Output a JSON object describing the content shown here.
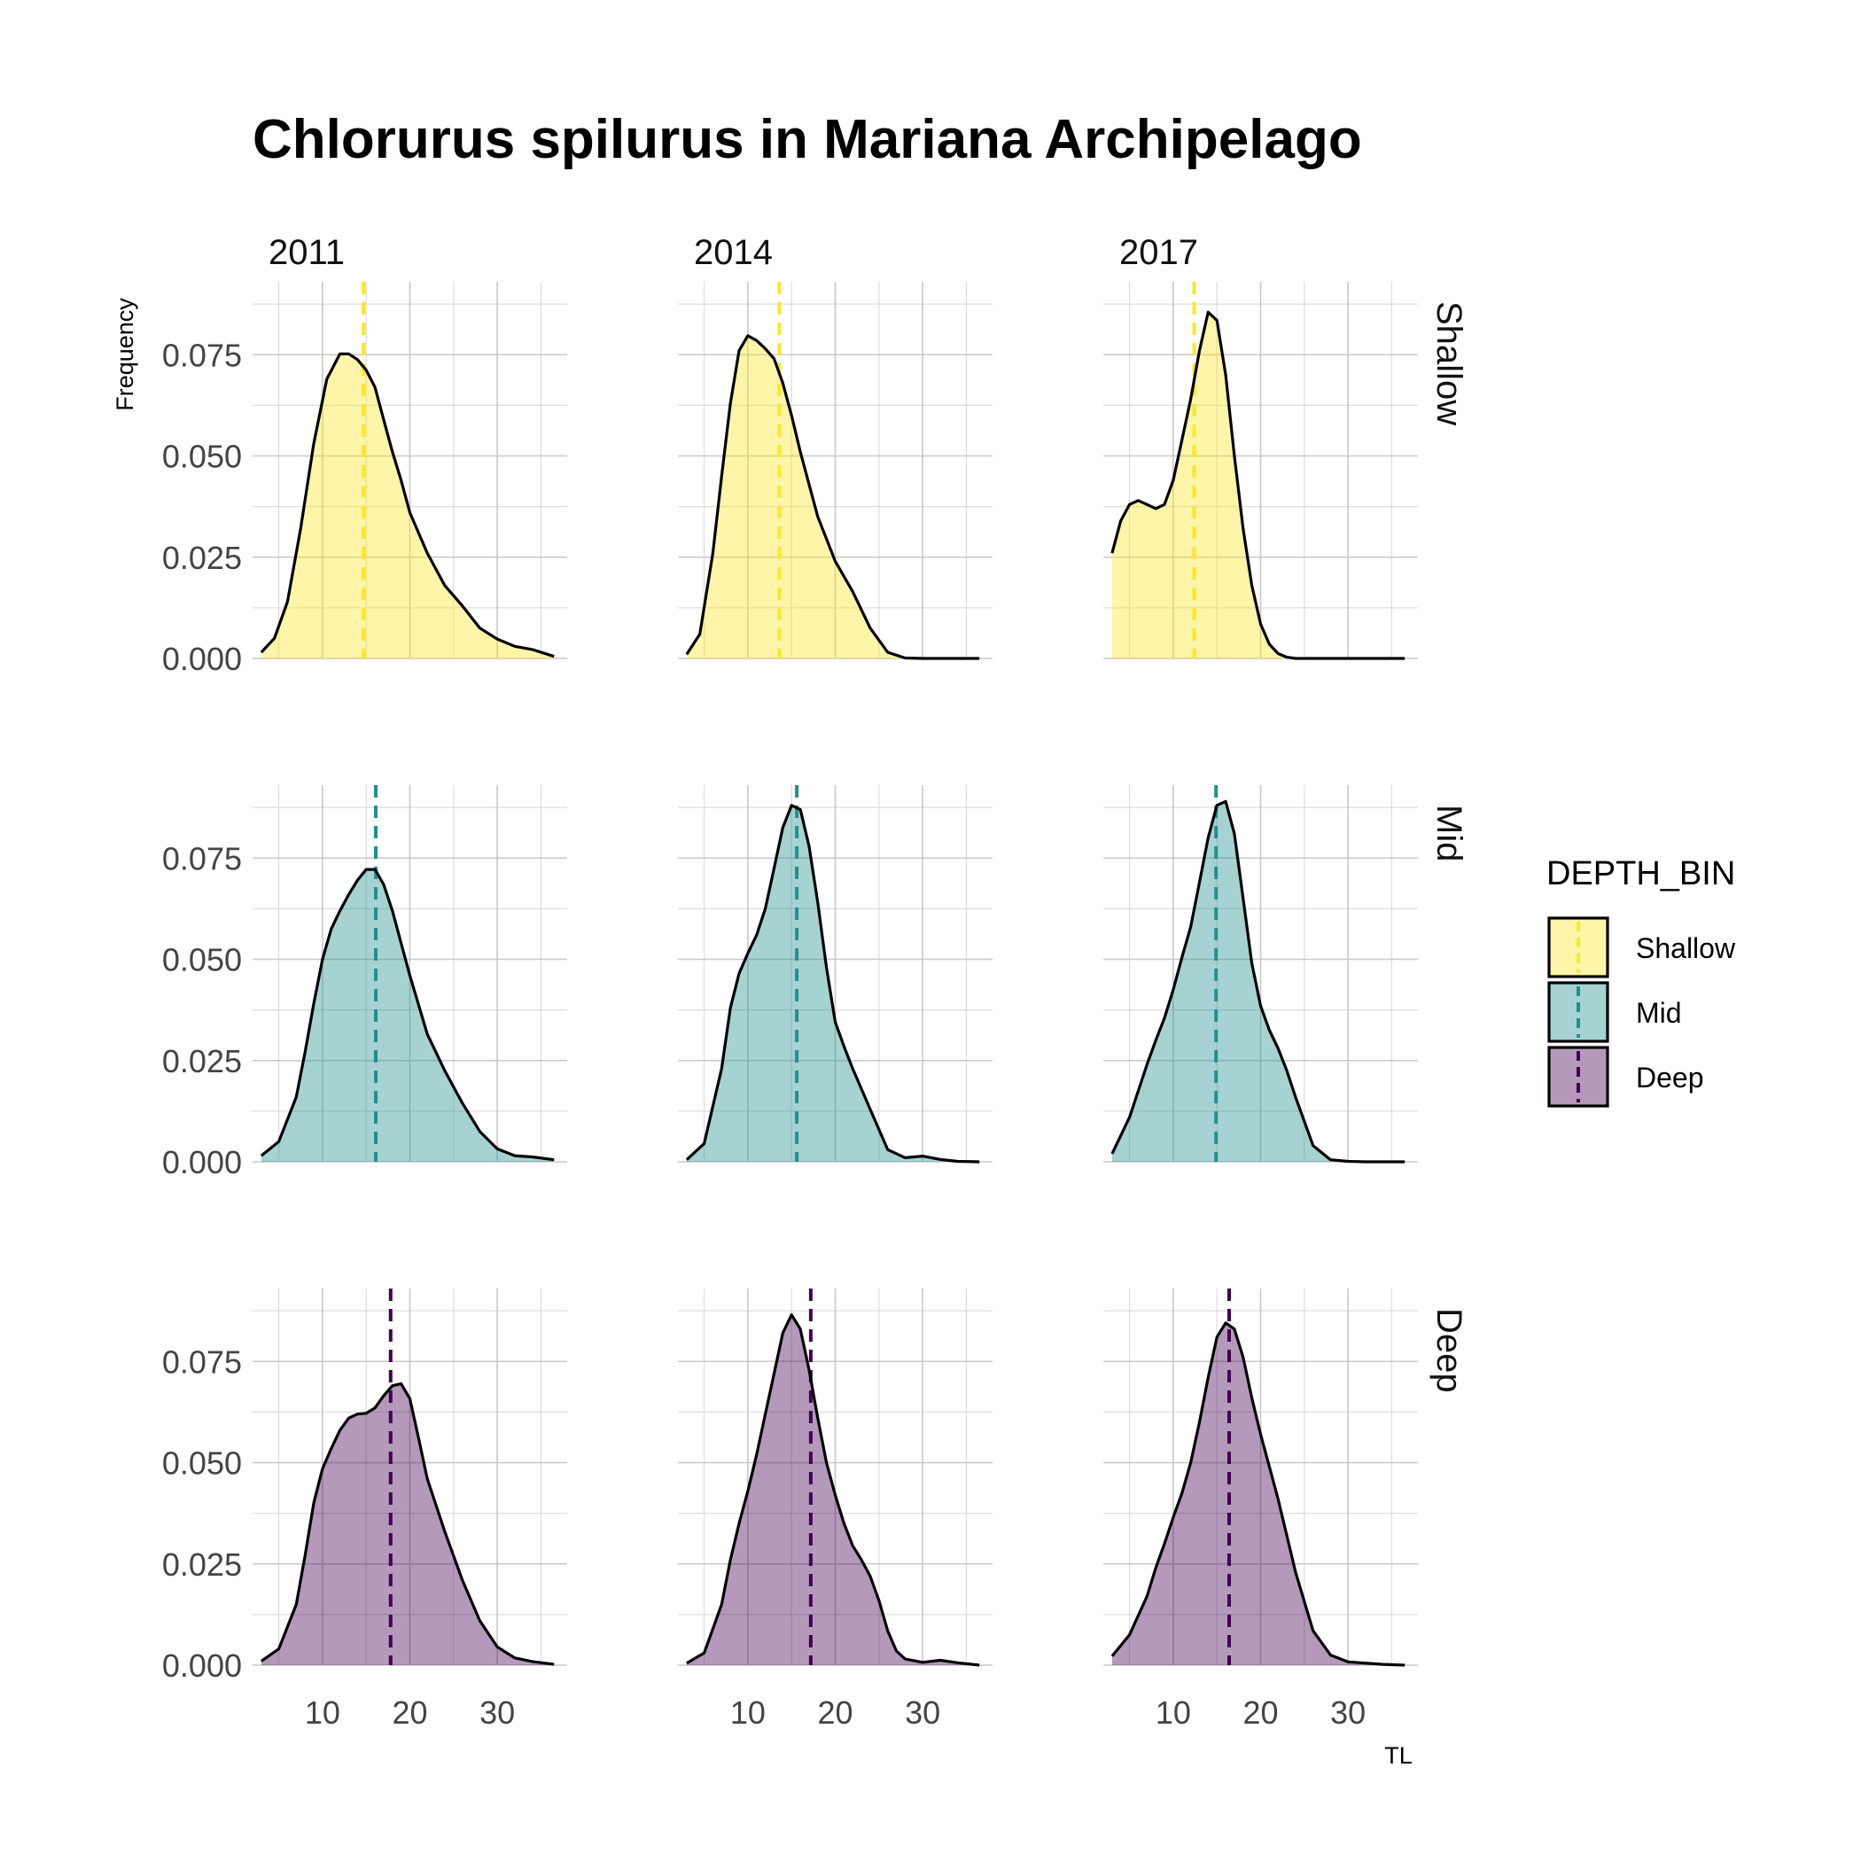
{
  "chart_data": {
    "type": "area",
    "title": "Chlorurus spilurus in Mariana Archipelago",
    "xlabel": "TL",
    "ylabel": "Frequency",
    "years": [
      "2011",
      "2014",
      "2017"
    ],
    "depth_bins": [
      "Shallow",
      "Mid",
      "Deep"
    ],
    "xlim": [
      2,
      38
    ],
    "ylim": [
      0,
      0.093
    ],
    "x_ticks": [
      10,
      20,
      30
    ],
    "y_ticks": [
      "0.000",
      "0.025",
      "0.050",
      "0.075"
    ],
    "grid": true,
    "legend": {
      "title": "DEPTH_BIN",
      "position": "right",
      "items": [
        {
          "label": "Shallow",
          "color": "#FDE725"
        },
        {
          "label": "Mid",
          "color": "#21908C"
        },
        {
          "label": "Deep",
          "color": "#440154"
        }
      ]
    },
    "panels": [
      {
        "depth": "Shallow",
        "year": "2011",
        "mean": 14.7,
        "x": [
          3,
          4.5,
          6,
          7.5,
          9,
          10.5,
          12,
          13,
          14,
          15,
          16,
          17,
          18,
          19,
          20,
          22,
          24,
          26,
          28,
          30,
          32,
          34,
          36.5
        ],
        "y": [
          0.0015,
          0.005,
          0.014,
          0.032,
          0.053,
          0.069,
          0.0752,
          0.0752,
          0.0738,
          0.0712,
          0.067,
          0.059,
          0.051,
          0.044,
          0.036,
          0.026,
          0.018,
          0.013,
          0.0075,
          0.0048,
          0.003,
          0.0022,
          0.0005
        ]
      },
      {
        "depth": "Shallow",
        "year": "2014",
        "mean": 13.6,
        "x": [
          3,
          4.5,
          6,
          7,
          8,
          9,
          10,
          11,
          12,
          13,
          14,
          15,
          16,
          18,
          20,
          22,
          24,
          26,
          28,
          30,
          32,
          34,
          36.5
        ],
        "y": [
          0.001,
          0.006,
          0.026,
          0.045,
          0.063,
          0.076,
          0.0797,
          0.0785,
          0.0765,
          0.074,
          0.068,
          0.06,
          0.051,
          0.035,
          0.024,
          0.0165,
          0.0075,
          0.0015,
          0.0001,
          0,
          0,
          0,
          0
        ]
      },
      {
        "depth": "Shallow",
        "year": "2017",
        "mean": 12.4,
        "x": [
          3,
          4,
          5,
          6,
          7,
          8,
          9,
          10,
          11,
          12,
          13,
          14,
          15,
          16,
          17,
          18,
          19,
          20,
          21,
          22,
          23,
          24,
          26,
          28,
          32,
          36.5
        ],
        "y": [
          0.026,
          0.034,
          0.038,
          0.039,
          0.038,
          0.037,
          0.038,
          0.044,
          0.054,
          0.064,
          0.076,
          0.0855,
          0.0835,
          0.07,
          0.05,
          0.032,
          0.018,
          0.0085,
          0.0035,
          0.0012,
          0.0003,
          0,
          0,
          0,
          0,
          0
        ]
      },
      {
        "depth": "Mid",
        "year": "2011",
        "mean": 16.1,
        "x": [
          3,
          5,
          7,
          8,
          9,
          10,
          11,
          12,
          13,
          14,
          15,
          16,
          17,
          18,
          19,
          20,
          22,
          24,
          26,
          28,
          30,
          32,
          34,
          36.5
        ],
        "y": [
          0.0015,
          0.005,
          0.016,
          0.027,
          0.039,
          0.05,
          0.0575,
          0.062,
          0.066,
          0.0695,
          0.0722,
          0.0722,
          0.0685,
          0.062,
          0.054,
          0.046,
          0.0315,
          0.0225,
          0.0145,
          0.0075,
          0.0032,
          0.0015,
          0.0012,
          0.0005
        ]
      },
      {
        "depth": "Mid",
        "year": "2014",
        "mean": 15.6,
        "x": [
          3,
          5,
          7,
          8,
          9,
          10,
          11,
          12,
          13,
          14,
          15,
          16,
          17,
          18,
          19,
          20,
          21,
          22,
          24,
          26,
          28,
          30,
          32,
          34,
          36.5
        ],
        "y": [
          0.0005,
          0.0045,
          0.023,
          0.038,
          0.0465,
          0.0515,
          0.056,
          0.0625,
          0.0725,
          0.0825,
          0.088,
          0.087,
          0.078,
          0.064,
          0.048,
          0.0345,
          0.0285,
          0.023,
          0.013,
          0.003,
          0.001,
          0.0014,
          0.0006,
          0.0001,
          0
        ]
      },
      {
        "depth": "Mid",
        "year": "2017",
        "mean": 14.9,
        "x": [
          3,
          5,
          7,
          8,
          9,
          10,
          11,
          12,
          13,
          14,
          15,
          16,
          17,
          18,
          19,
          20,
          21,
          22,
          23,
          24,
          26,
          28,
          30,
          32,
          34,
          36.5
        ],
        "y": [
          0.002,
          0.011,
          0.024,
          0.03,
          0.0355,
          0.0425,
          0.0505,
          0.058,
          0.069,
          0.08,
          0.088,
          0.089,
          0.081,
          0.065,
          0.049,
          0.0385,
          0.0325,
          0.028,
          0.0225,
          0.016,
          0.004,
          0.0005,
          0.0001,
          0,
          0,
          0
        ]
      },
      {
        "depth": "Deep",
        "year": "2011",
        "mean": 17.8,
        "x": [
          3,
          5,
          7,
          8,
          9,
          10,
          11,
          12,
          13,
          14,
          15,
          16,
          17,
          18,
          19,
          20,
          21,
          22,
          24,
          26,
          28,
          30,
          32,
          34,
          36.5
        ],
        "y": [
          0.001,
          0.004,
          0.015,
          0.027,
          0.04,
          0.0485,
          0.0535,
          0.058,
          0.061,
          0.062,
          0.0622,
          0.0635,
          0.0665,
          0.069,
          0.0695,
          0.0658,
          0.056,
          0.046,
          0.033,
          0.021,
          0.011,
          0.0045,
          0.0018,
          0.0009,
          0.0002
        ]
      },
      {
        "depth": "Deep",
        "year": "2014",
        "mean": 17.2,
        "x": [
          3,
          5,
          7,
          8,
          9,
          10,
          11,
          12,
          13,
          14,
          15,
          16,
          17,
          18,
          19,
          20,
          21,
          22,
          23,
          24,
          25,
          26,
          27,
          28,
          30,
          32,
          34,
          36.5
        ],
        "y": [
          0.0005,
          0.003,
          0.015,
          0.026,
          0.035,
          0.043,
          0.052,
          0.062,
          0.072,
          0.082,
          0.0865,
          0.083,
          0.073,
          0.061,
          0.05,
          0.042,
          0.035,
          0.0295,
          0.026,
          0.022,
          0.016,
          0.0085,
          0.0035,
          0.0015,
          0.0007,
          0.0012,
          0.0006,
          0
        ]
      },
      {
        "depth": "Deep",
        "year": "2017",
        "mean": 16.4,
        "x": [
          3,
          5,
          7,
          8,
          9,
          10,
          11,
          12,
          13,
          14,
          15,
          16,
          17,
          18,
          19,
          20,
          21,
          22,
          23,
          24,
          26,
          28,
          30,
          32,
          34,
          36.5
        ],
        "y": [
          0.0022,
          0.0075,
          0.017,
          0.024,
          0.03,
          0.0365,
          0.0425,
          0.05,
          0.06,
          0.071,
          0.081,
          0.0845,
          0.083,
          0.076,
          0.066,
          0.057,
          0.049,
          0.041,
          0.032,
          0.023,
          0.0085,
          0.0025,
          0.0008,
          0.0005,
          0.0002,
          0
        ]
      }
    ]
  }
}
